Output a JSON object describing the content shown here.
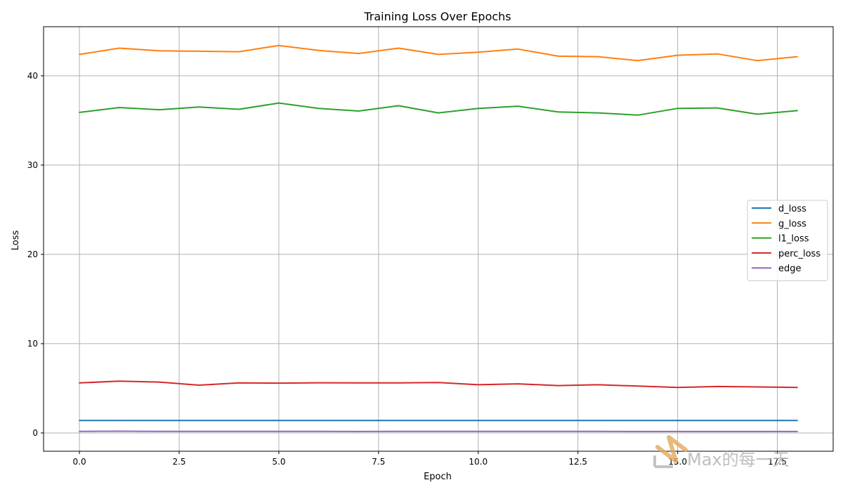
{
  "chart_data": {
    "type": "line",
    "title": "Training Loss Over Epochs",
    "xlabel": "Epoch",
    "ylabel": "Loss",
    "xlim": [
      -0.9,
      18.9
    ],
    "ylim": [
      -2.05,
      45.5
    ],
    "x_ticks": [
      0.0,
      2.5,
      5.0,
      7.5,
      10.0,
      12.5,
      15.0,
      17.5
    ],
    "x_tick_labels": [
      "0.0",
      "2.5",
      "5.0",
      "7.5",
      "10.0",
      "12.5",
      "15.0",
      "17.5"
    ],
    "y_ticks": [
      0,
      10,
      20,
      30,
      40
    ],
    "y_tick_labels": [
      "0",
      "10",
      "20",
      "30",
      "40"
    ],
    "grid": true,
    "legend_position": "center-right",
    "x": [
      0,
      1,
      2,
      3,
      4,
      5,
      6,
      7,
      8,
      9,
      10,
      11,
      12,
      13,
      14,
      15,
      16,
      17,
      18
    ],
    "series": [
      {
        "name": "d_loss",
        "color": "#1f77b4",
        "values": [
          1.39,
          1.39,
          1.39,
          1.39,
          1.39,
          1.39,
          1.39,
          1.39,
          1.39,
          1.39,
          1.39,
          1.39,
          1.39,
          1.39,
          1.39,
          1.39,
          1.39,
          1.39,
          1.39
        ]
      },
      {
        "name": "g_loss",
        "color": "#ff7f0e",
        "values": [
          42.4,
          43.1,
          42.8,
          42.75,
          42.7,
          43.4,
          42.85,
          42.5,
          43.1,
          42.4,
          42.65,
          43.0,
          42.2,
          42.15,
          41.7,
          42.3,
          42.45,
          41.7,
          42.15
        ]
      },
      {
        "name": "l1_loss",
        "color": "#2ca02c",
        "values": [
          35.9,
          36.45,
          36.2,
          36.5,
          36.25,
          36.95,
          36.35,
          36.05,
          36.65,
          35.85,
          36.35,
          36.6,
          35.95,
          35.85,
          35.6,
          36.35,
          36.4,
          35.7,
          36.1
        ]
      },
      {
        "name": "perc_loss",
        "color": "#d62728",
        "values": [
          5.6,
          5.8,
          5.7,
          5.35,
          5.6,
          5.58,
          5.62,
          5.6,
          5.6,
          5.65,
          5.4,
          5.5,
          5.3,
          5.4,
          5.25,
          5.1,
          5.2,
          5.15,
          5.1
        ]
      },
      {
        "name": "edge",
        "color": "#9467bd",
        "values": [
          0.18,
          0.19,
          0.18,
          0.17,
          0.17,
          0.18,
          0.17,
          0.16,
          0.17,
          0.17,
          0.17,
          0.17,
          0.17,
          0.17,
          0.16,
          0.16,
          0.16,
          0.16,
          0.16
        ]
      }
    ]
  },
  "watermark": {
    "text": "Max的每一天",
    "logo_letter": "M",
    "logo_color": "#e2a95c",
    "text_color": "#b4b4b4"
  }
}
